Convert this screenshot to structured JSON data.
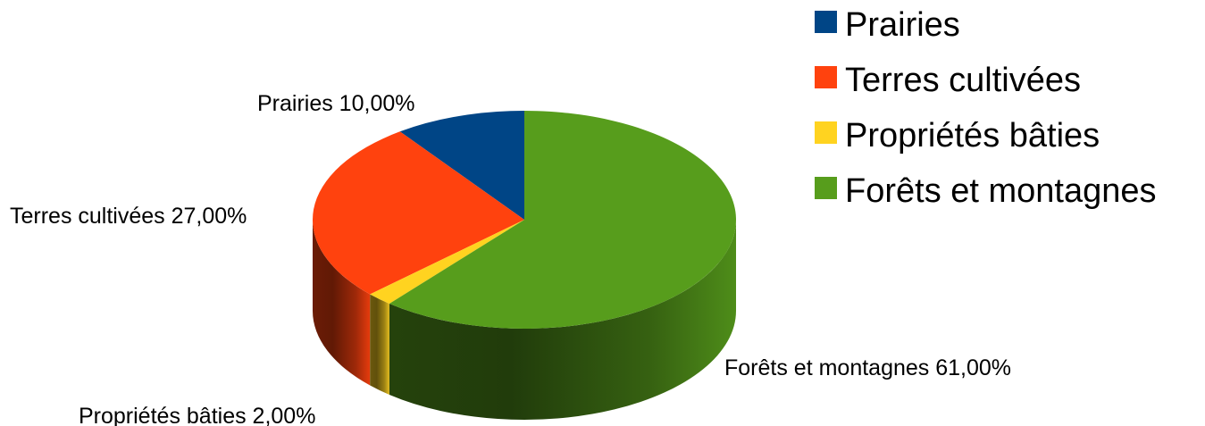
{
  "chart_data": {
    "type": "pie",
    "style": "3d",
    "title": "",
    "categories": [
      "Prairies",
      "Terres cultivées",
      "Propriétés bâties",
      "Forêts et montagnes"
    ],
    "values": [
      10,
      27,
      2,
      61
    ],
    "unit": "%",
    "colors": [
      "#004586",
      "#ff420e",
      "#ffd320",
      "#579d1c"
    ],
    "legend": [
      "Prairies",
      "Terres cultivées",
      "Propriétés bâties",
      "Forêts et montagnes"
    ],
    "legend_position": "top-right",
    "data_labels": [
      "Prairies 10,00%",
      "Terres cultivées 27,00%",
      "Propriétés bâties 2,00%",
      "Forêts et montagnes 61,00%"
    ]
  }
}
